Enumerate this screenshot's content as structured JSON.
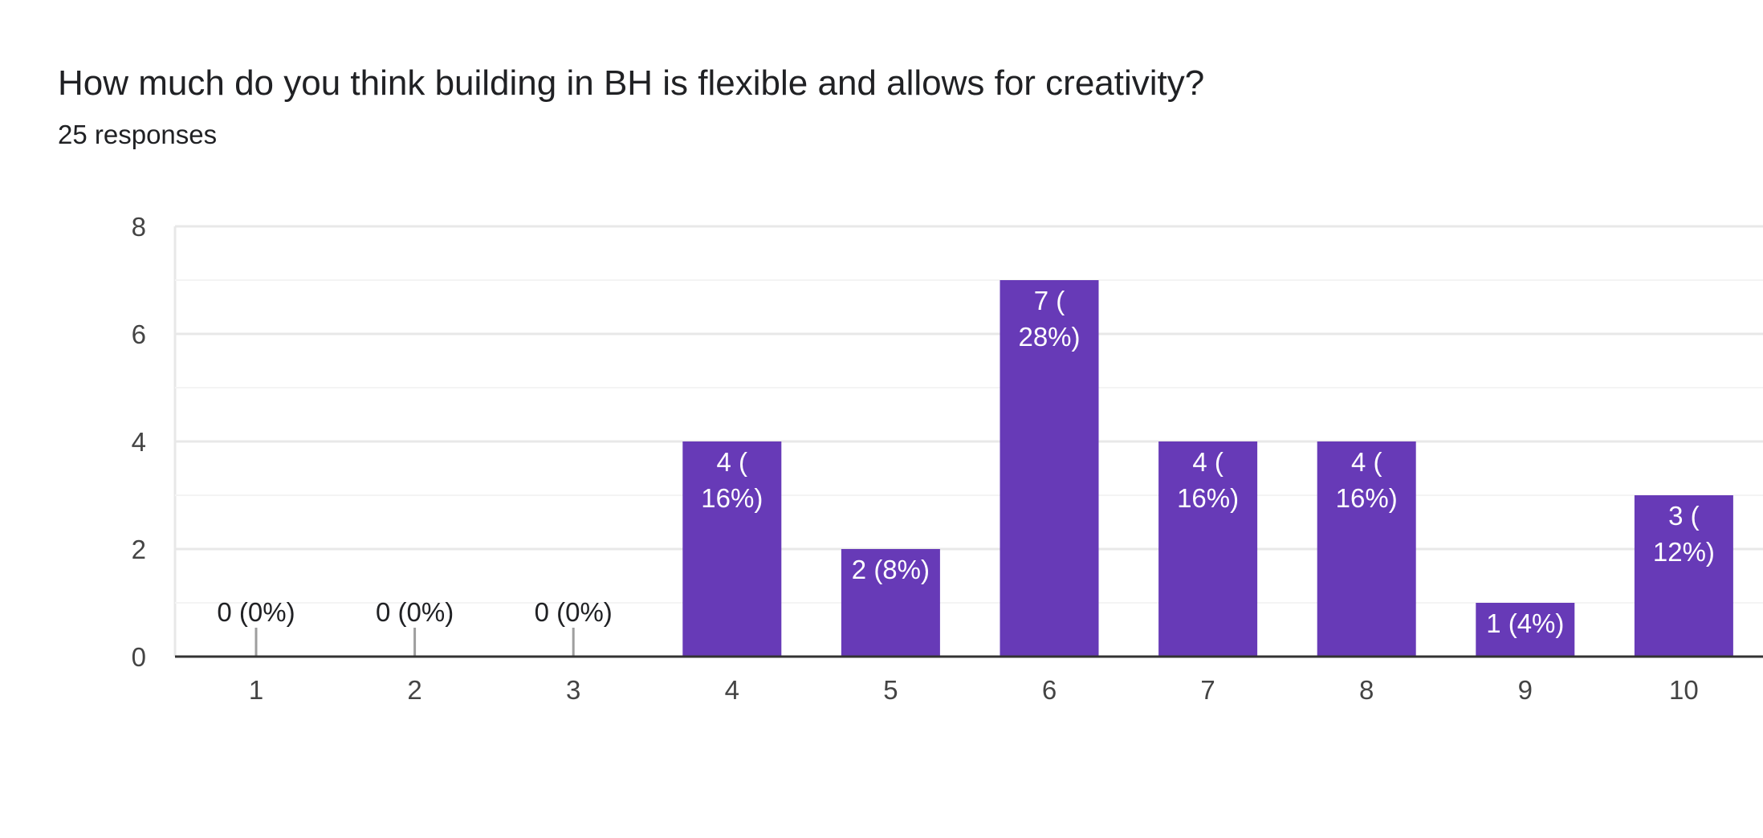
{
  "form": {
    "question": "How much do you think building in BH is flexible and allows for creativity?",
    "responses": "25 responses"
  },
  "colors": {
    "bar": "#673ab7",
    "grid_major": "#e8e8e8",
    "grid_minor": "#f4f4f4",
    "axis": "#333333",
    "stub": "#9e9e9e",
    "label_inside": "#ffffff",
    "label_outside": "#202124"
  },
  "chart_data": {
    "type": "bar",
    "title": "How much do you think building in BH is flexible and allows for creativity?",
    "subtitle": "25 responses",
    "xlabel": "",
    "ylabel": "",
    "categories": [
      "1",
      "2",
      "3",
      "4",
      "5",
      "6",
      "7",
      "8",
      "9",
      "10"
    ],
    "values": [
      0,
      0,
      0,
      4,
      2,
      7,
      4,
      4,
      1,
      3
    ],
    "data_labels": [
      [
        "0 (0%)"
      ],
      [
        "0 (0%)"
      ],
      [
        "0 (0%)"
      ],
      [
        "4 (",
        "16%)"
      ],
      [
        "2 (8%)"
      ],
      [
        "7 (",
        "28%)"
      ],
      [
        "4 (",
        "16%)"
      ],
      [
        "4 (",
        "16%)"
      ],
      [
        "1 (4%)"
      ],
      [
        "3 (",
        "12%)"
      ]
    ],
    "ylim": [
      0,
      8
    ],
    "yticks": [
      0,
      2,
      4,
      6,
      8
    ],
    "grid": true
  }
}
